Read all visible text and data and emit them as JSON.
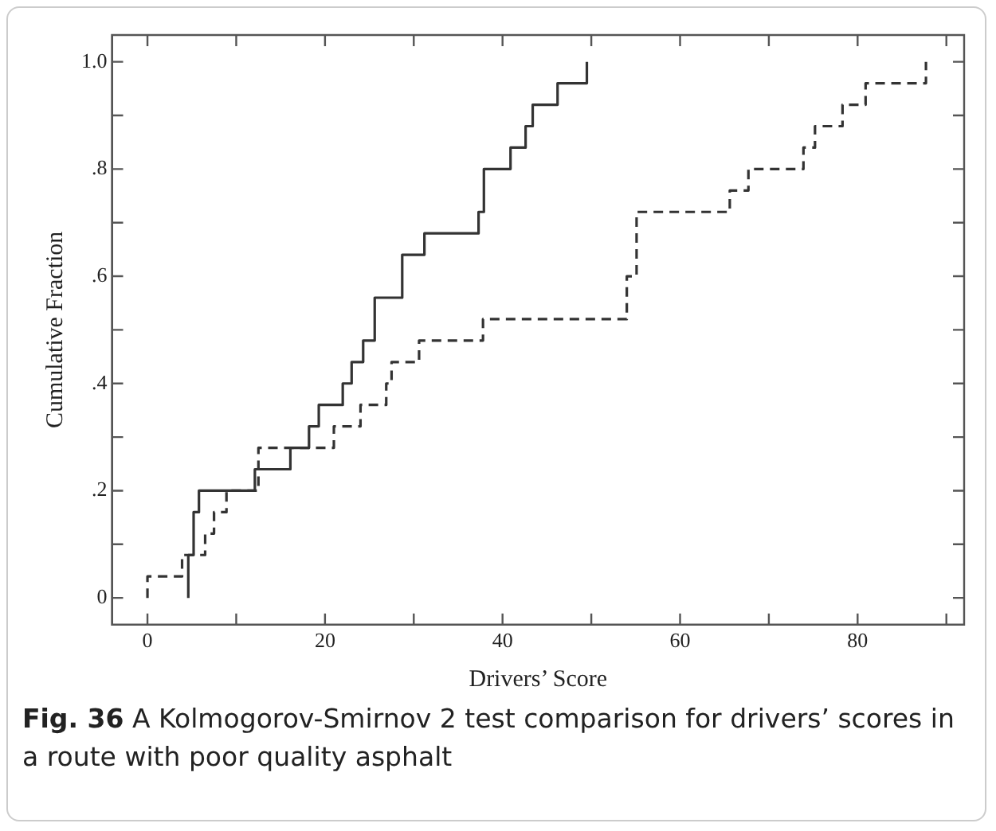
{
  "chart_data": {
    "type": "step",
    "xlabel": "Drivers’ Score",
    "ylabel": "Cumulative Fraction",
    "annotations": [
      "Fig. 36",
      "A Kolmogorov-Smirnov 2 test comparison for drivers’ scores in a route with poor quality asphalt"
    ],
    "series": [
      {
        "color": "#333333",
        "line_style": "solid",
        "x": [
          4.6,
          4.6,
          5.2,
          5.8,
          12.1,
          16.1,
          18.2,
          19.3,
          22.0,
          23.0,
          24.3,
          25.6,
          28.7,
          31.2,
          37.3,
          37.9,
          40.9,
          42.6,
          43.4,
          46.2,
          49.5
        ],
        "values": [
          0,
          0.08,
          0.16,
          0.2,
          0.24,
          0.28,
          0.32,
          0.36,
          0.4,
          0.44,
          0.48,
          0.56,
          0.64,
          0.68,
          0.72,
          0.8,
          0.84,
          0.88,
          0.92,
          0.96,
          1.0
        ]
      },
      {
        "color": "#333333",
        "line_style": "dashed",
        "x": [
          0,
          0,
          3.9,
          6.5,
          7.5,
          8.9,
          12.5,
          21.0,
          24.0,
          26.9,
          27.5,
          30.6,
          37.8,
          54.0,
          55.1,
          65.6,
          67.7,
          73.9,
          75.2,
          78.3,
          80.9,
          87.7
        ],
        "values": [
          0,
          0.04,
          0.08,
          0.12,
          0.16,
          0.2,
          0.28,
          0.32,
          0.36,
          0.4,
          0.44,
          0.48,
          0.52,
          0.6,
          0.72,
          0.76,
          0.8,
          0.84,
          0.88,
          0.92,
          0.96,
          1.0
        ]
      }
    ],
    "xlim": [
      -4,
      92
    ],
    "xticks": [
      0,
      {
        "value": 10,
        "label": null
      },
      20,
      {
        "value": 30,
        "label": null
      },
      40,
      {
        "value": 50,
        "label": null
      },
      60,
      {
        "value": 70,
        "label": null
      },
      80,
      {
        "value": 90,
        "label": null
      }
    ],
    "ylim": [
      -0.05,
      1.05
    ],
    "yticks": [
      0,
      {
        "value": 0.1,
        "label": null
      },
      {
        "value": 0.2,
        "label": ".2"
      },
      {
        "value": 0.3,
        "label": null
      },
      {
        "value": 0.4,
        "label": ".4"
      },
      {
        "value": 0.5,
        "label": null
      },
      {
        "value": 0.6,
        "label": ".6"
      },
      {
        "value": 0.7,
        "label": null
      },
      {
        "value": 0.8,
        "label": ".8"
      },
      {
        "value": 0.9,
        "label": null
      },
      {
        "value": 1,
        "label": "1.0"
      }
    ],
    "grid": false,
    "legend": false
  }
}
